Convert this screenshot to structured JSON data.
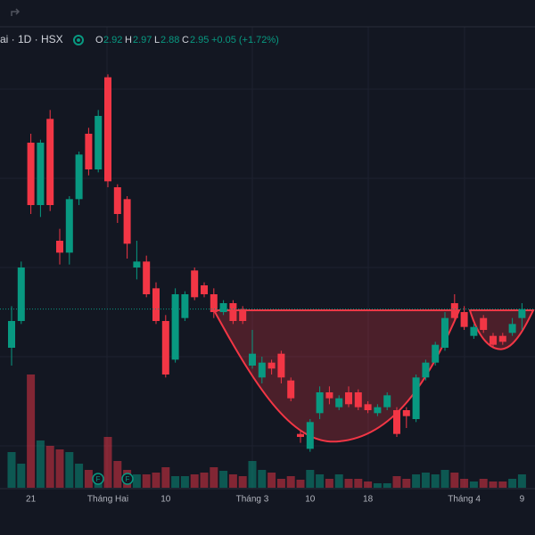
{
  "chart_data": {
    "type": "candlestick",
    "header": {
      "symbol": "ai · 1D · HSX",
      "open_label": "O",
      "open": 2.92,
      "high_label": "H",
      "high": 2.97,
      "low_label": "L",
      "low": 2.88,
      "close_label": "C",
      "close": 2.95,
      "change": "+0.05 (+1.72%)"
    },
    "categories": [
      null,
      null,
      "21",
      null,
      null,
      null,
      null,
      null,
      null,
      null,
      "Tháng Hai",
      null,
      null,
      null,
      null,
      null,
      "10",
      null,
      null,
      null,
      null,
      null,
      null,
      null,
      null,
      "Tháng 3",
      null,
      null,
      null,
      null,
      null,
      "10",
      null,
      null,
      null,
      null,
      null,
      "18",
      null,
      null,
      null,
      null,
      null,
      null,
      null,
      null,
      null,
      "Tháng 4",
      null,
      null,
      null,
      null,
      null,
      "9"
    ],
    "open": [
      2.82,
      2.91,
      3.51,
      3.3,
      3.59,
      3.18,
      3.14,
      3.32,
      3.54,
      3.42,
      3.73,
      3.36,
      3.32,
      3.09,
      3.11,
      3.02,
      2.91,
      2.78,
      2.92,
      3.08,
      3.03,
      3.0,
      2.94,
      2.97,
      2.95,
      2.76,
      2.72,
      2.77,
      2.8,
      2.71,
      2.53,
      2.48,
      2.6,
      2.67,
      2.62,
      2.67,
      2.67,
      2.63,
      2.6,
      2.62,
      2.61,
      2.61,
      2.58,
      2.72,
      2.77,
      2.82,
      2.97,
      2.94,
      2.86,
      2.92,
      2.86,
      2.86,
      2.87,
      2.92
    ],
    "high": [
      2.96,
      3.11,
      3.54,
      3.52,
      3.62,
      3.22,
      3.33,
      3.48,
      3.56,
      3.62,
      3.74,
      3.37,
      3.33,
      3.18,
      3.13,
      3.04,
      2.93,
      3.02,
      3.01,
      3.09,
      3.04,
      3.02,
      2.98,
      2.98,
      2.96,
      2.88,
      2.79,
      2.78,
      2.81,
      2.72,
      2.54,
      2.58,
      2.69,
      2.69,
      2.66,
      2.69,
      2.68,
      2.64,
      2.63,
      2.67,
      2.62,
      2.62,
      2.73,
      2.78,
      2.84,
      2.94,
      3.0,
      2.96,
      2.9,
      2.93,
      2.87,
      2.87,
      2.92,
      2.97
    ],
    "low": [
      2.76,
      2.9,
      3.27,
      3.26,
      3.28,
      3.1,
      3.1,
      3.3,
      3.4,
      3.41,
      3.36,
      3.24,
      3.12,
      3.05,
      2.99,
      2.9,
      2.72,
      2.77,
      2.91,
      2.98,
      2.99,
      2.92,
      2.93,
      2.9,
      2.9,
      2.75,
      2.7,
      2.73,
      2.7,
      2.64,
      2.5,
      2.47,
      2.58,
      2.63,
      2.61,
      2.62,
      2.61,
      2.6,
      2.59,
      2.61,
      2.52,
      2.55,
      2.57,
      2.71,
      2.76,
      2.81,
      2.91,
      2.88,
      2.85,
      2.87,
      2.82,
      2.83,
      2.86,
      2.88
    ],
    "close": [
      2.91,
      3.09,
      3.3,
      3.51,
      3.3,
      3.14,
      3.32,
      3.47,
      3.42,
      3.6,
      3.38,
      3.27,
      3.17,
      3.11,
      3.0,
      2.91,
      2.73,
      3.0,
      3.0,
      2.99,
      3.0,
      2.94,
      2.97,
      2.91,
      2.91,
      2.8,
      2.77,
      2.75,
      2.72,
      2.65,
      2.52,
      2.57,
      2.67,
      2.65,
      2.65,
      2.63,
      2.62,
      2.61,
      2.62,
      2.66,
      2.53,
      2.59,
      2.72,
      2.77,
      2.83,
      2.92,
      2.92,
      2.89,
      2.89,
      2.88,
      2.83,
      2.84,
      2.9,
      2.95
    ],
    "volume": [
      40,
      27,
      127,
      53,
      47,
      43,
      40,
      27,
      20,
      15,
      57,
      30,
      20,
      15,
      15,
      17,
      23,
      13,
      13,
      15,
      17,
      23,
      19,
      15,
      13,
      30,
      20,
      17,
      10,
      13,
      9,
      20,
      15,
      10,
      15,
      10,
      10,
      7,
      5,
      5,
      13,
      10,
      15,
      17,
      15,
      20,
      17,
      10,
      7,
      10,
      7,
      7,
      10,
      15
    ],
    "ylim": [
      2.31,
      3.99
    ],
    "volume_ylim": [
      0,
      130
    ],
    "up_color": "#089981",
    "down_color": "#f23645"
  }
}
